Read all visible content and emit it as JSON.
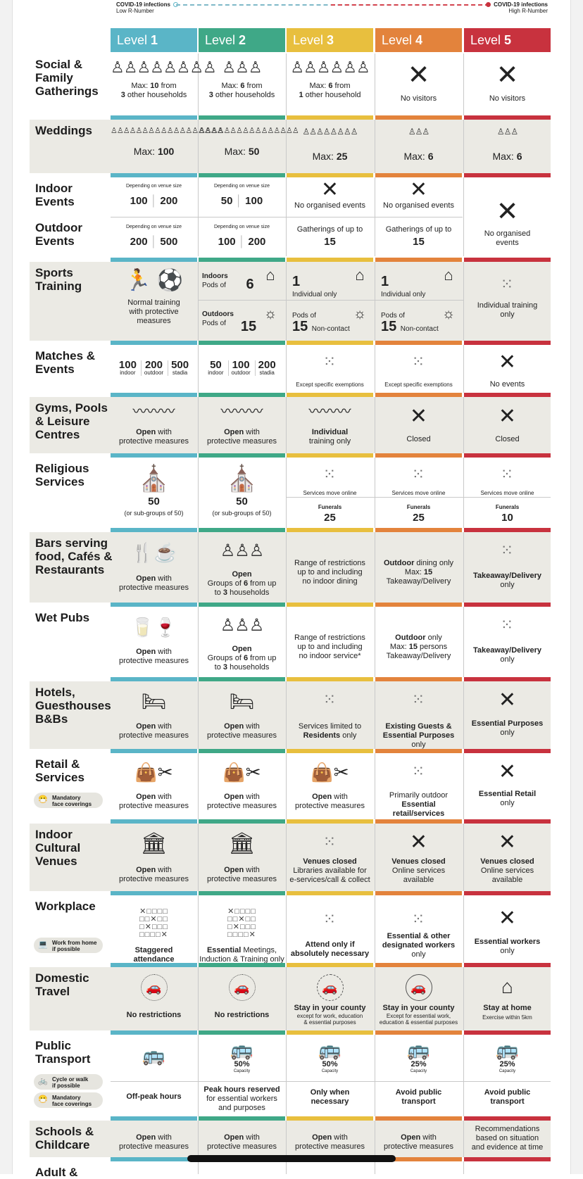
{
  "legend": {
    "low_title": "COVID-19 infections",
    "low_sub": "Low R-Number",
    "high_title": "COVID-19 infections",
    "high_sub": "High R-Number"
  },
  "levels": [
    {
      "word": "Level",
      "num": "1",
      "color": "#5ab5c7"
    },
    {
      "word": "Level",
      "num": "2",
      "color": "#3fa887"
    },
    {
      "word": "Level",
      "num": "3",
      "color": "#e8bf3e"
    },
    {
      "word": "Level",
      "num": "4",
      "color": "#e3833c"
    },
    {
      "word": "Level",
      "num": "5",
      "color": "#c8323e"
    }
  ],
  "rows": {
    "social": {
      "label": "Social & Family Gatherings",
      "c": [
        [
          "Max: 10 from",
          "3 other households"
        ],
        [
          "Max: 6 from",
          "3 other households"
        ],
        [
          "Max: 6 from",
          "1 other household"
        ],
        [
          "No visitors"
        ],
        [
          "No visitors"
        ]
      ]
    },
    "weddings": {
      "label": "Weddings",
      "c": [
        "Max: 100",
        "Max: 50",
        "Max:  25",
        "Max: 6",
        "Max: 6"
      ]
    },
    "indoor": {
      "label": "Indoor Events",
      "note": "Depending on venue size",
      "c": [
        [
          "100",
          "200"
        ],
        [
          "50",
          "100"
        ],
        "No organised  events",
        "No organised  events"
      ]
    },
    "outdoor": {
      "label": "Outdoor Events",
      "note": "Depending on venue size",
      "c": [
        [
          "200",
          "500"
        ],
        [
          "100",
          "200"
        ],
        [
          "Gatherings of up to",
          "15"
        ],
        [
          "Gatherings of up to",
          "15"
        ]
      ],
      "l5": "No organised events"
    },
    "sports": {
      "label": "Sports Training",
      "l1": [
        "Normal training",
        "with protective",
        "measures"
      ],
      "indoors": "Indoors",
      "pods_of": "Pods of",
      "n6": "6",
      "outdoors": "Outdoors",
      "n15": "15",
      "one": "1",
      "indiv": "Individual only",
      "noncontact": "Non-contact",
      "l5": [
        "Individual training",
        "only"
      ]
    },
    "matches": {
      "label": "Matches & Events",
      "l1": [
        "100",
        "200",
        "500"
      ],
      "l2": [
        "50",
        "100",
        "200"
      ],
      "subs": [
        "indoor",
        "outdoor",
        "stadia"
      ],
      "l3": "Except specific exemptions",
      "l4": "Except specific exemptions",
      "l5": "No events"
    },
    "gyms": {
      "label": "Gyms, Pools & Leisure Centres",
      "open": "Open",
      "with": " with",
      "prot": "protective measures",
      "l3a": "Individual",
      "l3b": "training only",
      "closed": "Closed"
    },
    "religious": {
      "label": "Religious Services",
      "n50": "50",
      "sub50": "(or sub-groups of 50)",
      "online": "Services move online",
      "funerals": "Funerals",
      "f3": "25",
      "f4": "25",
      "f5": "10"
    },
    "bars": {
      "label": "Bars serving food, Cafés & Restaurants",
      "l2a": "Open",
      "l2b": "Groups of 6 from up",
      "l2c": "to 3 households",
      "l3": [
        "Range of restrictions",
        "up to and including",
        "no indoor dining"
      ],
      "l4a": "Outdoor dining only",
      "l4b": "Max: 15",
      "l4c": "Takeaway/Delivery",
      "l5a": "Takeaway/Delivery",
      "l5b": "only"
    },
    "pubs": {
      "label": "Wet Pubs",
      "l3": [
        "Range of restrictions",
        "up to and including",
        "no indoor service*"
      ],
      "l4a": "Outdoor only",
      "l4b": "Max: 15 persons",
      "l4c": "Takeaway/Delivery"
    },
    "hotels": {
      "label": "Hotels, Guesthouses B&Bs",
      "l3a": "Services limited to",
      "l3b": "Residents only",
      "l4a": "Existing Guests &",
      "l4b": "Essential Purposes only",
      "l5a": "Essential Purposes",
      "l5b": "only"
    },
    "retail": {
      "label": "Retail & Services",
      "pill": [
        "Mandatory",
        "face coverings"
      ],
      "l4a": "Primarily outdoor",
      "l4b": "Essential retail/services",
      "l5a": "Essential Retail",
      "l5b": "only"
    },
    "cultural": {
      "label": "Indoor Cultural Venues",
      "vc": "Venues closed",
      "l3b": "Libraries available for",
      "l3c": "e-services/call & collect",
      "l45b": "Online services",
      "l45c": "available"
    },
    "work": {
      "label": "Workplace",
      "pill": [
        "Work from home",
        "if possible"
      ],
      "l1a": "Staggered",
      "l1b": "attendance",
      "l2a": "Essential Meetings,",
      "l2b": "Induction & Training only",
      "l3a": "Attend only if",
      "l3b": "absolutely necessary",
      "l4a": "Essential & other",
      "l4b": "designated workers",
      "l4c": "only",
      "l5a": "Essential workers",
      "l5b": "only"
    },
    "travel": {
      "label": "Domestic Travel",
      "nr": "No restrictions",
      "county": "Stay in your county",
      "l3b": "except for work, education",
      "l3c": "& essential purposes",
      "l4b": "Except for essential work,",
      "l4c": "education & essential purposes",
      "l5a": "Stay at home",
      "l5b": "Exercise within 5km"
    },
    "transport": {
      "label": "Public Transport",
      "pill1": [
        "Cycle or walk",
        "if possible"
      ],
      "pill2": [
        "Mandatory",
        "face coverings"
      ],
      "cap": "Capacity",
      "p2": "50%",
      "p3": "50%",
      "p4": "25%",
      "p5": "25%",
      "l1": "Off-peak hours",
      "l2a": "Peak hours reserved",
      "l2b": "for essential workers",
      "l2c": "and purposes",
      "l3a": "Only when",
      "l3b": "necessary",
      "l4a": "Avoid public",
      "l4b": "transport",
      "l5a": "Avoid public",
      "l5b": "transport"
    },
    "schools": {
      "label": "Schools & Childcare",
      "l5": [
        "Recommendations",
        "based on situation",
        "and evidence at time"
      ]
    },
    "adult": {
      "label": "Adult &"
    }
  }
}
